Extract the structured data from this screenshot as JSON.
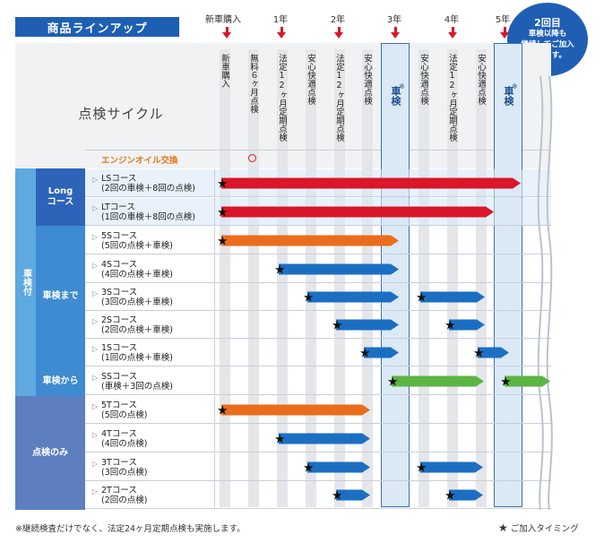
{
  "header": {
    "title": "商品ラインアップ",
    "timeline": [
      "新車購入",
      "1年",
      "2年",
      "3年",
      "4年",
      "5年"
    ]
  },
  "bubble": {
    "line1": "2回目",
    "line2": "車検以降も",
    "line3": "継続してご加入",
    "line4": "頂けます。"
  },
  "cycle": {
    "title": "点検サイクル",
    "columns": [
      "新車購入",
      "無料６ヶ月点検",
      "法定12ヶ月定期点検",
      "安心快適点検",
      "法定12ヶ月定期点検",
      "安心快適点検",
      "車検",
      "安心快適点検",
      "法定12ヶ月定期点検",
      "安心快適点検",
      "車検"
    ],
    "inspect_mark": "※",
    "oil_label": "エンジンオイル交換"
  },
  "groups": {
    "with_inspection": "車検付",
    "long": "Long\nコース",
    "until": "車検まで",
    "from": "車検から",
    "only": "点検のみ"
  },
  "courses": [
    {
      "name": "LSコース",
      "detail": "(2回の車検＋8回の点検)"
    },
    {
      "name": "LTコース",
      "detail": "(1回の車検＋8回の点検)"
    },
    {
      "name": "5Sコース",
      "detail": "(5回の点検＋車検)"
    },
    {
      "name": "4Sコース",
      "detail": "(4回の点検＋車検)"
    },
    {
      "name": "3Sコース",
      "detail": "(3回の点検＋車検)"
    },
    {
      "name": "2Sコース",
      "detail": "(2回の点検＋車検)"
    },
    {
      "name": "1Sコース",
      "detail": "(1回の点検＋車検)"
    },
    {
      "name": "SSコース",
      "detail": "(車検＋3回の点検)"
    },
    {
      "name": "5Tコース",
      "detail": "(5回の点検)"
    },
    {
      "name": "4Tコース",
      "detail": "(4回の点検)"
    },
    {
      "name": "3Tコース",
      "detail": "(3回の点検)"
    },
    {
      "name": "2Tコース",
      "detail": "(2回の点検)"
    }
  ],
  "footer": {
    "note": "※継続検査だけでなく、法定24ヶ月定期点検も実施します。",
    "legend": "ご加入タイミング"
  },
  "colors": {
    "red": "#d9162a",
    "orange": "#ea6d1b",
    "blue": "#1b6fc2",
    "green": "#5cb543"
  }
}
